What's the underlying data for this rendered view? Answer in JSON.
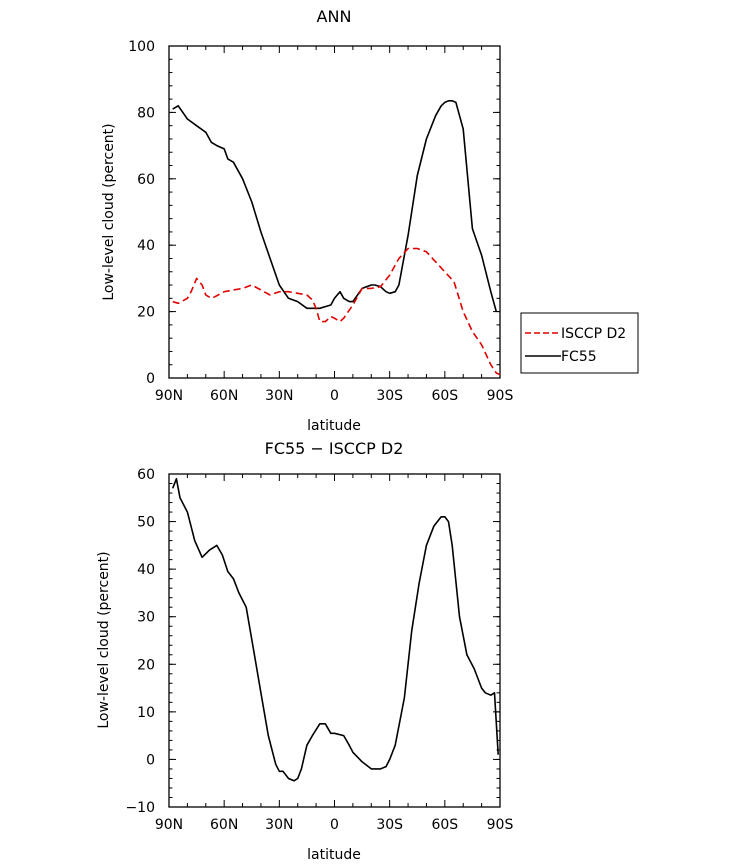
{
  "chart_data": [
    {
      "type": "line",
      "title": "ANN",
      "xlabel": "latitude",
      "ylabel": "Low-level cloud (percent)",
      "xlim": [
        90,
        -90
      ],
      "ylim": [
        0,
        100
      ],
      "x_ticks": [
        90,
        60,
        30,
        0,
        -30,
        -60,
        -90
      ],
      "x_tick_labels": [
        "90N",
        "60N",
        "30N",
        "0",
        "30S",
        "60S",
        "90S"
      ],
      "y_ticks": [
        0,
        20,
        40,
        60,
        80,
        100
      ],
      "y_tick_labels": [
        "0",
        "20",
        "40",
        "60",
        "80",
        "100"
      ],
      "legend": {
        "placement": "outside-right-bottom",
        "entries": [
          {
            "name": "ISCCP D2",
            "color": "#e00000",
            "dash": "dashed"
          },
          {
            "name": "FC55",
            "color": "#000000",
            "dash": "solid"
          }
        ]
      },
      "series": [
        {
          "name": "FC55",
          "color": "#000000",
          "dash": "solid",
          "x": [
            88,
            85,
            80,
            75,
            70,
            67,
            64,
            60,
            58,
            55,
            50,
            45,
            40,
            35,
            30,
            25,
            20,
            15,
            10,
            8,
            5,
            2,
            0,
            -3,
            -5,
            -8,
            -10,
            -15,
            -20,
            -22,
            -25,
            -28,
            -30,
            -33,
            -35,
            -40,
            -45,
            -50,
            -55,
            -58,
            -60,
            -62,
            -64,
            -66,
            -70,
            -75,
            -80,
            -85,
            -88
          ],
          "y": [
            81,
            82,
            78,
            76,
            74,
            71,
            70,
            69,
            66,
            65,
            60,
            53,
            44,
            36,
            28,
            24,
            23,
            21,
            21,
            21,
            21.5,
            22,
            24,
            26,
            24,
            23,
            23,
            27,
            28,
            28,
            27.5,
            26,
            25.5,
            26,
            28,
            43,
            61,
            72,
            79,
            82,
            83,
            83.5,
            83.5,
            83,
            75,
            45,
            37,
            26,
            20
          ]
        },
        {
          "name": "ISCCP D2",
          "color": "#e00000",
          "dash": "dashed",
          "x": [
            88,
            85,
            80,
            78,
            75,
            72,
            70,
            67,
            65,
            60,
            55,
            50,
            45,
            40,
            35,
            30,
            25,
            20,
            15,
            12,
            10,
            8,
            5,
            2,
            0,
            -3,
            -5,
            -10,
            -15,
            -20,
            -25,
            -30,
            -35,
            -40,
            -45,
            -50,
            -55,
            -60,
            -65,
            -70,
            -75,
            -80,
            -85,
            -88,
            -90
          ],
          "y": [
            23,
            22.5,
            24,
            26,
            30,
            28,
            25,
            24,
            24.5,
            26,
            26.5,
            27,
            28,
            26.5,
            25,
            26,
            26,
            25.5,
            25,
            23.5,
            21,
            17,
            17,
            18.5,
            18,
            17,
            18,
            22,
            27,
            27,
            27.5,
            31,
            36,
            39,
            39,
            38,
            35,
            32,
            29,
            20,
            14,
            10,
            4,
            1.5,
            1
          ]
        }
      ]
    },
    {
      "type": "line",
      "title": "FC55 − ISCCP D2",
      "xlabel": "latitude",
      "ylabel": "Low-level cloud (percent)",
      "xlim": [
        90,
        -90
      ],
      "ylim": [
        -10,
        60
      ],
      "x_ticks": [
        90,
        60,
        30,
        0,
        -30,
        -60,
        -90
      ],
      "x_tick_labels": [
        "90N",
        "60N",
        "30N",
        "0",
        "30S",
        "60S",
        "90S"
      ],
      "y_ticks": [
        -10,
        0,
        10,
        20,
        30,
        40,
        50,
        60
      ],
      "y_tick_labels": [
        "−10",
        "0",
        "10",
        "20",
        "30",
        "40",
        "50",
        "60"
      ],
      "series": [
        {
          "name": "FC55 − ISCCP D2",
          "color": "#000000",
          "dash": "solid",
          "x": [
            88,
            86,
            84,
            80,
            76,
            72,
            68,
            64,
            61,
            58,
            55,
            52,
            48,
            44,
            40,
            36,
            32,
            30,
            28,
            25,
            22,
            20,
            18,
            15,
            12,
            8,
            5,
            2,
            0,
            -5,
            -8,
            -10,
            -15,
            -20,
            -25,
            -28,
            -30,
            -33,
            -35,
            -38,
            -42,
            -46,
            -50,
            -54,
            -58,
            -60,
            -62,
            -64,
            -68,
            -72,
            -76,
            -80,
            -82,
            -85,
            -87,
            -89
          ],
          "y": [
            57,
            59,
            55,
            52,
            46,
            42.5,
            44,
            45,
            43,
            39.5,
            38,
            35,
            32,
            23,
            14,
            5,
            -1,
            -2.5,
            -2.5,
            -4,
            -4.5,
            -4,
            -2,
            3,
            5,
            7.5,
            7.5,
            5.5,
            5.5,
            5,
            3,
            1.5,
            -0.5,
            -2,
            -2,
            -1.5,
            0,
            3,
            7,
            13,
            27,
            37,
            45,
            49,
            51,
            51,
            50,
            45,
            30,
            22,
            19,
            15,
            14,
            13.5,
            14,
            1
          ]
        }
      ]
    }
  ]
}
